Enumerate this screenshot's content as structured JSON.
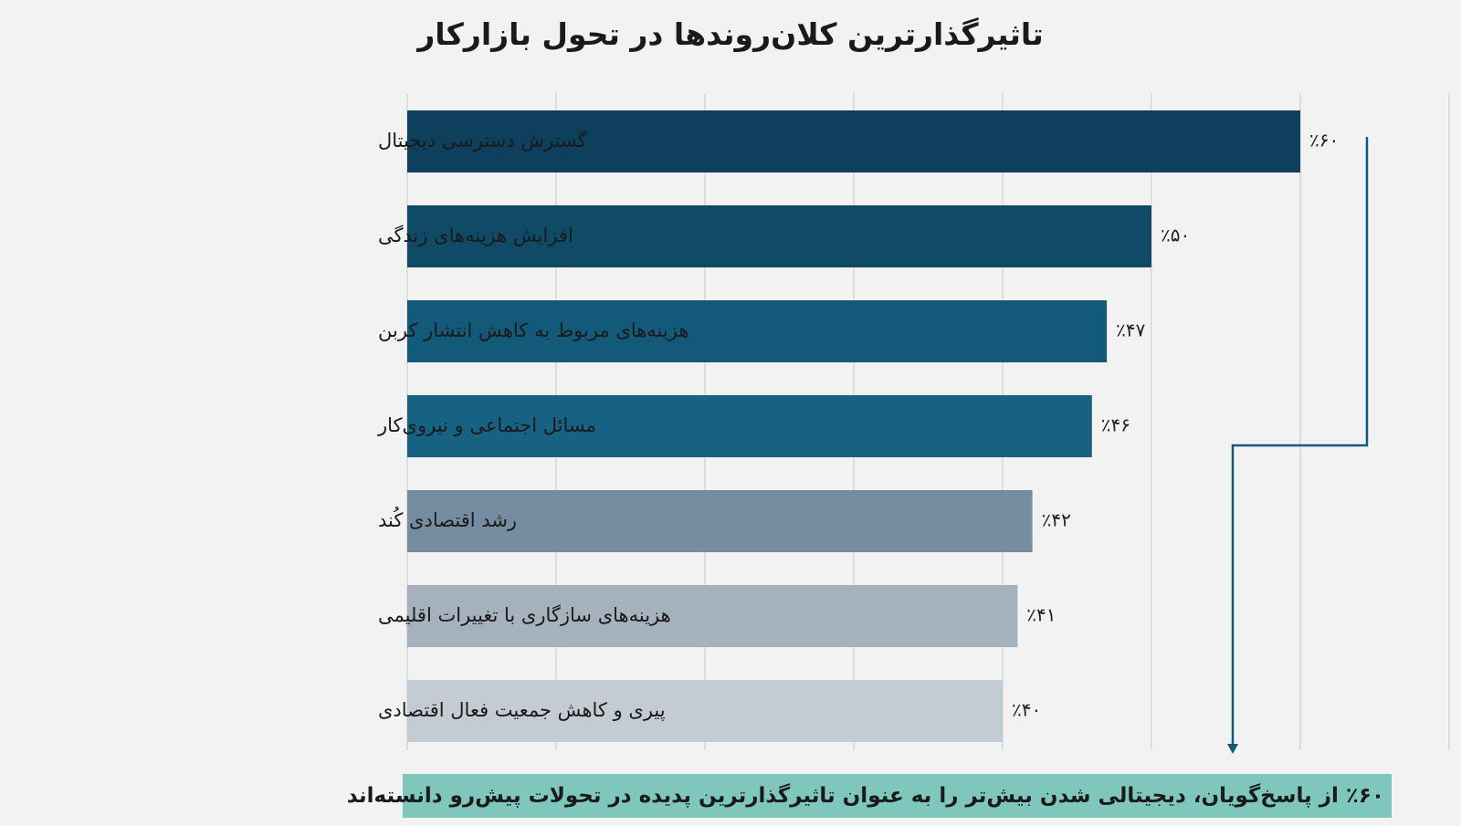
{
  "chart_data": {
    "type": "bar",
    "orientation": "horizontal",
    "title": "تاثیرگذارترین کلان‌روندها در تحول بازارکار",
    "categories": [
      "گسترش دسترسی دیجیتال",
      "افزایش هزینه‌های زندگی",
      "هزینه‌های مربوط به کاهش انتشار کربن",
      "مسائل اجتماعی و نیروی‌کار",
      "رشد اقتصادی کُند",
      "هزینه‌های سازگاری با تغییرات اقلیمی",
      "پیری و کاهش جمعیت فعال اقتصادی"
    ],
    "values": [
      60,
      50,
      47,
      46,
      42,
      41,
      40
    ],
    "value_labels": [
      "٪۶۰",
      "٪۵۰",
      "٪۴۷",
      "٪۴۶",
      "٪۴۲",
      "٪۴۱",
      "٪۴۰"
    ],
    "bar_colors": [
      "#0e3f5c",
      "#0f4a66",
      "#135a7a",
      "#176282",
      "#768da1",
      "#a5b1bd",
      "#c3cbd3"
    ],
    "xlim": [
      0,
      70
    ],
    "grid": true,
    "annotation": "٪۶۰ از پاسخ‌گویان، دیجیتالی شدن بیش‌تر را به عنوان  تاثیرگذارترین پدیده در تحولات پیش‌رو  دانسته‌اند"
  },
  "colors": {
    "arrow": "#135a7a",
    "footer_bg": "#7fc7bd",
    "grid": "#d6d6d6"
  }
}
